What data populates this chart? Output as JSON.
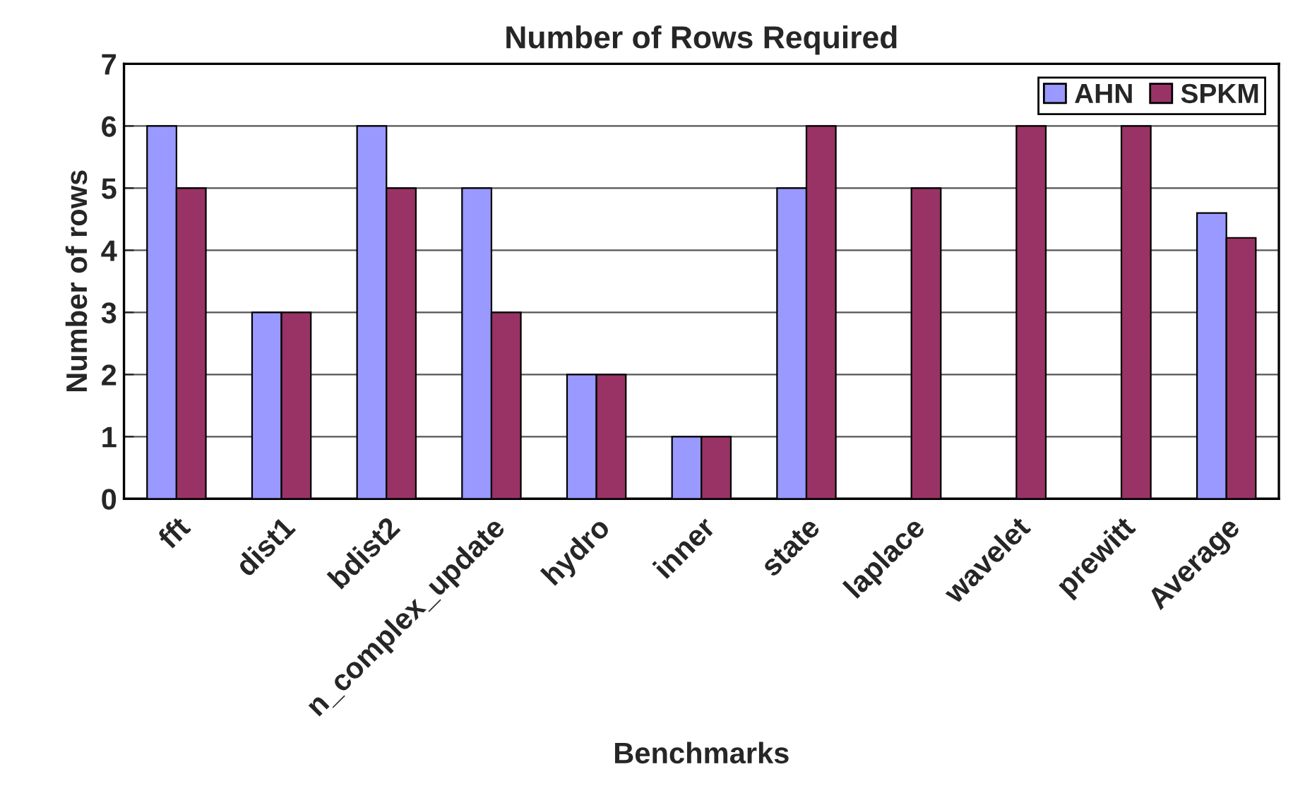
{
  "chart_data": {
    "type": "bar",
    "title": "Number of Rows Required",
    "xlabel": "Benchmarks",
    "ylabel": "Number of rows",
    "categories": [
      "fft",
      "dist1",
      "bdist2",
      "n_complex_update",
      "hydro",
      "inner",
      "state",
      "laplace",
      "wavelet",
      "prewitt",
      "Average"
    ],
    "series": [
      {
        "name": "AHN",
        "color": "#9999ff",
        "values": [
          6,
          3,
          6,
          5,
          2,
          1,
          5,
          null,
          null,
          null,
          4.6
        ]
      },
      {
        "name": "SPKM",
        "color": "#993366",
        "values": [
          5,
          3,
          5,
          3,
          2,
          1,
          6,
          5,
          6,
          6,
          4.2
        ]
      }
    ],
    "ylim": [
      0,
      7
    ],
    "yticks": [
      0,
      1,
      2,
      3,
      4,
      5,
      6,
      7
    ],
    "grid": "y",
    "legend": "top right"
  }
}
